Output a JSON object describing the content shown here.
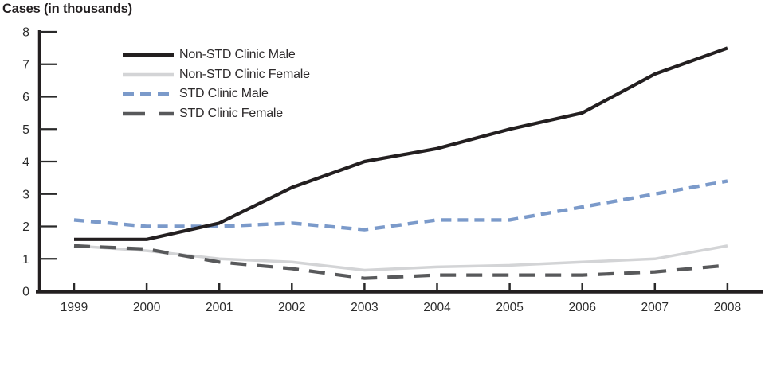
{
  "page": {
    "title": "Cases (in thousands)"
  },
  "chart_data": {
    "type": "line",
    "title": "Cases (in thousands)",
    "xlabel": "",
    "ylabel": "Cases (in thousands)",
    "x": [
      1999,
      2000,
      2001,
      2002,
      2003,
      2004,
      2005,
      2006,
      2007,
      2008
    ],
    "ylim": [
      0,
      8
    ],
    "yticks": [
      0,
      1,
      2,
      3,
      4,
      5,
      6,
      7,
      8
    ],
    "grid": false,
    "legend_position": "inside-top-left",
    "axis_color": "#231f20",
    "tick_label_color": "#2b2b2b",
    "series": [
      {
        "name": "Non-STD Clinic Male",
        "color": "#231f20",
        "line_style": "solid",
        "values": [
          1.6,
          1.6,
          2.1,
          3.2,
          4.0,
          4.4,
          5.0,
          5.5,
          6.7,
          7.5
        ]
      },
      {
        "name": "Non-STD Clinic Female",
        "color": "#d3d4d6",
        "line_style": "solid",
        "values": [
          1.4,
          1.25,
          1.0,
          0.9,
          0.65,
          0.75,
          0.8,
          0.9,
          1.0,
          1.4
        ]
      },
      {
        "name": "STD Clinic Male",
        "color": "#7b9aca",
        "line_style": "dashed",
        "values": [
          2.2,
          2.0,
          2.0,
          2.1,
          1.9,
          2.2,
          2.2,
          2.6,
          3.0,
          3.4
        ]
      },
      {
        "name": "STD Clinic Female",
        "color": "#58595b",
        "line_style": "long-dashed",
        "values": [
          1.4,
          1.3,
          0.9,
          0.7,
          0.4,
          0.5,
          0.5,
          0.5,
          0.6,
          0.8
        ]
      }
    ]
  }
}
